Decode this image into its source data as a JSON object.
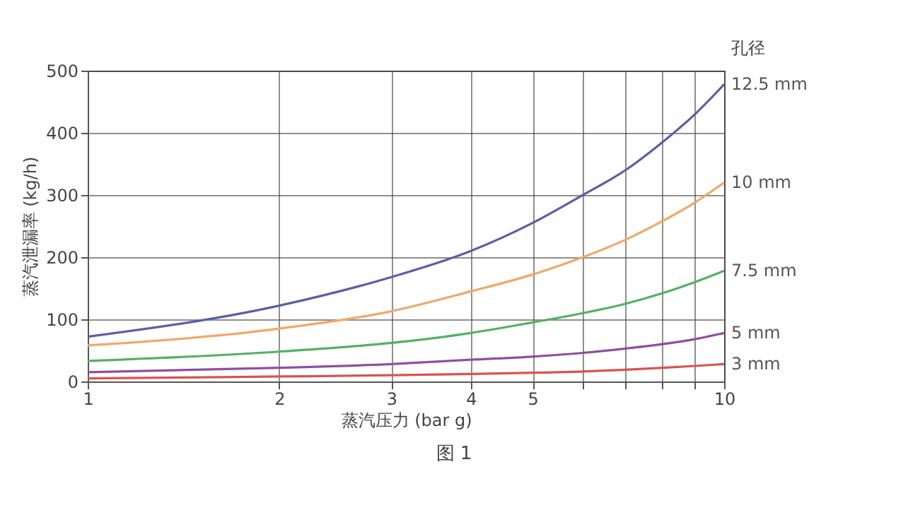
{
  "chart_data": {
    "type": "line",
    "xlabel": "蒸汽压力 (bar g)",
    "ylabel": "蒸汽泄漏率 (kg/h)",
    "legend_title": "孔径",
    "annotations": [
      "图 1"
    ],
    "x": [
      1,
      2,
      3,
      4,
      5,
      6,
      7,
      8,
      9,
      10
    ],
    "series": [
      {
        "name": "12.5 mm",
        "color": "#5b5ea6",
        "values": [
          72,
          122,
          168,
          210,
          255,
          300,
          340,
          385,
          430,
          478
        ]
      },
      {
        "name": "10 mm",
        "color": "#f0a868",
        "values": [
          58,
          85,
          113,
          145,
          172,
          200,
          228,
          258,
          288,
          320
        ]
      },
      {
        "name": "7.5 mm",
        "color": "#55b065",
        "values": [
          33,
          48,
          62,
          78,
          95,
          110,
          125,
          142,
          160,
          178
        ]
      },
      {
        "name": "5 mm",
        "color": "#8e4fa0",
        "values": [
          15,
          22,
          28,
          35,
          40,
          46,
          53,
          60,
          68,
          78
        ]
      },
      {
        "name": "3 mm",
        "color": "#d9534f",
        "values": [
          5,
          8,
          10,
          12,
          14,
          16,
          19,
          22,
          25,
          28
        ]
      }
    ],
    "log": "x",
    "xlim": [
      1,
      10
    ],
    "xticks": [
      1,
      2,
      3,
      4,
      5,
      {
        "value": 6,
        "label": null
      },
      {
        "value": 7,
        "label": null
      },
      {
        "value": 8,
        "label": null
      },
      {
        "value": 9,
        "label": null
      },
      10
    ],
    "ylim": [
      0,
      500
    ],
    "yticks": [
      0,
      100,
      200,
      300,
      400,
      500
    ],
    "grid": true,
    "legend": "right",
    "marker": "none",
    "line_style": "solid"
  }
}
